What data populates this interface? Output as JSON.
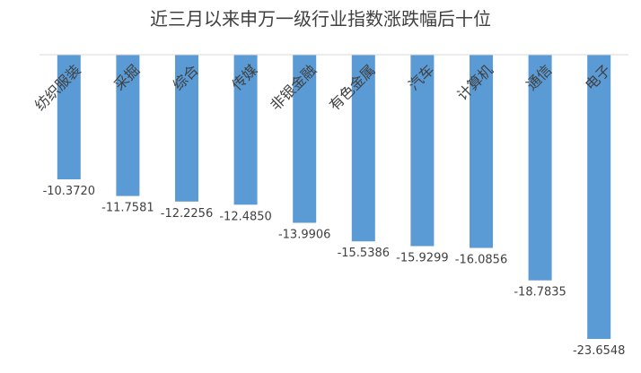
{
  "chart_data": {
    "type": "bar",
    "title": "近三月以来申万一级行业指数涨跌幅后十位",
    "categories": [
      "纺织服装",
      "采掘",
      "综合",
      "传媒",
      "非银金融",
      "有色金属",
      "汽车",
      "计算机",
      "通信",
      "电子"
    ],
    "values": [
      -10.372,
      -11.7581,
      -12.2256,
      -12.485,
      -13.9906,
      -15.5386,
      -15.9299,
      -16.0856,
      -18.7835,
      -23.6548
    ],
    "data_labels": [
      "-10.3720",
      "-11.7581",
      "-12.2256",
      "-12.4850",
      "-13.9906",
      "-15.5386",
      "-15.9299",
      "-16.0856",
      "-18.7835",
      "-23.6548"
    ],
    "xlabel": "",
    "ylabel": "",
    "ylim": [
      -25,
      0
    ],
    "grid": false,
    "legend": "none",
    "colors": {
      "bar": "#5B9BD5",
      "axis": "#D9D9D9",
      "text": "#404040"
    }
  }
}
